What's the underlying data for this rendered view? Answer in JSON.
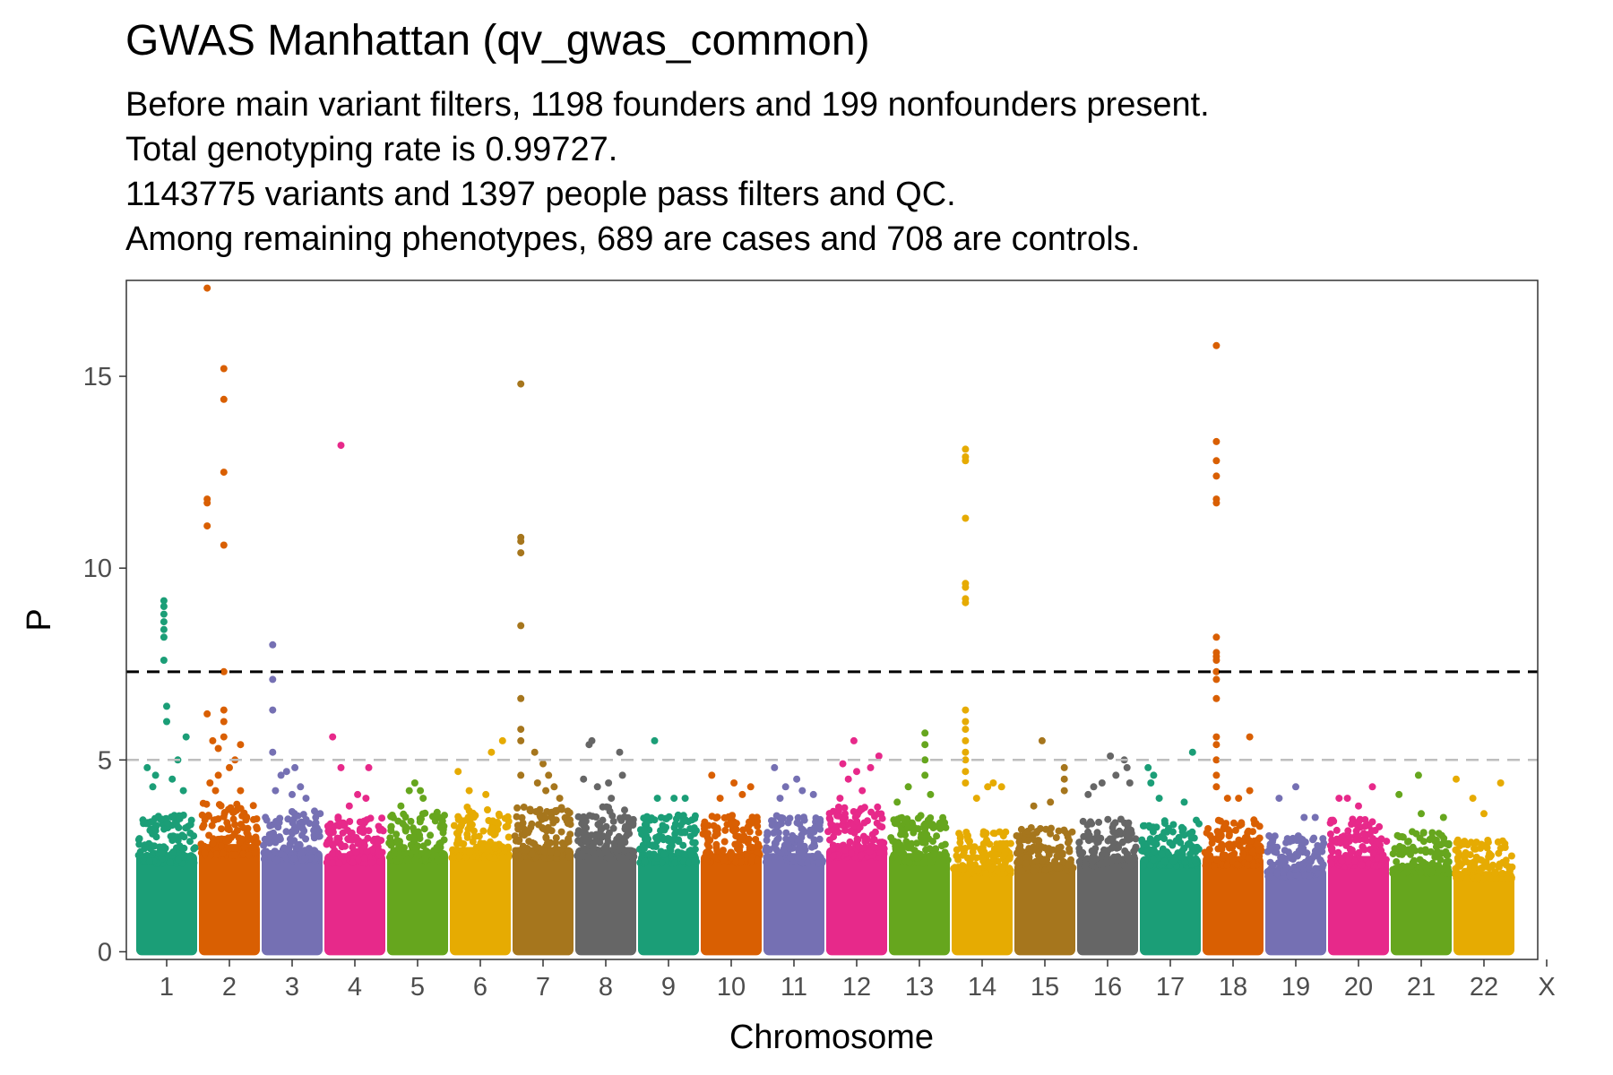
{
  "chart_data": {
    "type": "scatter",
    "title": "GWAS Manhattan (qv_gwas_common)",
    "subtitle_lines": [
      "Before main variant filters, 1198 founders and 199 nonfounders present.",
      "Total genotyping rate is 0.99727.",
      "1143775 variants and 1397 people pass filters and QC.",
      "Among remaining phenotypes, 689 are cases and 708 are controls."
    ],
    "xlabel": "Chromosome",
    "ylabel": "P",
    "ylim": [
      -0.2,
      17.5
    ],
    "yticks": [
      0,
      5,
      10,
      15
    ],
    "grid": false,
    "chromosomes": [
      "1",
      "2",
      "3",
      "4",
      "5",
      "6",
      "7",
      "8",
      "9",
      "10",
      "11",
      "12",
      "13",
      "14",
      "15",
      "16",
      "17",
      "18",
      "19",
      "20",
      "21",
      "22",
      "X"
    ],
    "colors": [
      "#1b9e77",
      "#d95f02",
      "#7570b3",
      "#e7298a",
      "#66a61e",
      "#e6ab02",
      "#a6761d",
      "#666666"
    ],
    "thresholds": [
      {
        "value": 7.3,
        "color": "#000000",
        "style": "dashed"
      },
      {
        "value": 5.0,
        "color": "#bebebe",
        "style": "dashed"
      }
    ],
    "series": [
      {
        "chromosome": "1",
        "base_max": 3.3,
        "hits": [
          [
            0.45,
            9.15
          ],
          [
            0.45,
            9.0
          ],
          [
            0.45,
            8.8
          ],
          [
            0.45,
            8.6
          ],
          [
            0.45,
            8.4
          ],
          [
            0.45,
            8.2
          ],
          [
            0.45,
            7.6
          ],
          [
            0.5,
            6.4
          ],
          [
            0.5,
            6.0
          ],
          [
            0.85,
            5.6
          ],
          [
            0.7,
            5.0
          ],
          [
            0.15,
            4.8
          ],
          [
            0.3,
            4.6
          ],
          [
            0.6,
            4.5
          ],
          [
            0.25,
            4.3
          ],
          [
            0.8,
            4.2
          ]
        ]
      },
      {
        "chromosome": "2",
        "base_max": 3.6,
        "hits": [
          [
            0.1,
            17.3
          ],
          [
            0.4,
            15.2
          ],
          [
            0.4,
            14.4
          ],
          [
            0.4,
            12.5
          ],
          [
            0.1,
            11.8
          ],
          [
            0.1,
            11.7
          ],
          [
            0.1,
            11.1
          ],
          [
            0.4,
            10.6
          ],
          [
            0.4,
            7.3
          ],
          [
            0.4,
            6.3
          ],
          [
            0.1,
            6.2
          ],
          [
            0.4,
            6.0
          ],
          [
            0.4,
            5.6
          ],
          [
            0.2,
            5.5
          ],
          [
            0.3,
            5.3
          ],
          [
            0.7,
            5.4
          ],
          [
            0.6,
            5.0
          ],
          [
            0.5,
            4.8
          ],
          [
            0.3,
            4.6
          ],
          [
            0.15,
            4.4
          ],
          [
            0.7,
            4.2
          ],
          [
            0.25,
            4.2
          ]
        ]
      },
      {
        "chromosome": "3",
        "base_max": 3.4,
        "hits": [
          [
            0.15,
            8.0
          ],
          [
            0.15,
            7.1
          ],
          [
            0.15,
            6.3
          ],
          [
            0.15,
            5.2
          ],
          [
            0.4,
            4.7
          ],
          [
            0.55,
            4.8
          ],
          [
            0.3,
            4.6
          ],
          [
            0.65,
            4.3
          ],
          [
            0.2,
            4.2
          ],
          [
            0.75,
            4.0
          ],
          [
            0.5,
            4.1
          ]
        ]
      },
      {
        "chromosome": "4",
        "base_max": 3.3,
        "hits": [
          [
            0.25,
            13.2
          ],
          [
            0.1,
            5.6
          ],
          [
            0.25,
            4.8
          ],
          [
            0.75,
            4.8
          ],
          [
            0.55,
            4.1
          ],
          [
            0.7,
            4.0
          ],
          [
            0.4,
            3.8
          ]
        ]
      },
      {
        "chromosome": "5",
        "base_max": 3.4,
        "hits": [
          [
            0.45,
            4.4
          ],
          [
            0.55,
            4.2
          ],
          [
            0.35,
            4.2
          ],
          [
            0.6,
            4.0
          ],
          [
            0.2,
            3.8
          ]
        ]
      },
      {
        "chromosome": "6",
        "base_max": 3.5,
        "hits": [
          [
            0.9,
            5.5
          ],
          [
            0.7,
            5.2
          ],
          [
            0.1,
            4.7
          ],
          [
            0.3,
            4.2
          ],
          [
            0.6,
            4.1
          ]
        ]
      },
      {
        "chromosome": "7",
        "base_max": 3.5,
        "hits": [
          [
            0.1,
            14.8
          ],
          [
            0.1,
            10.8
          ],
          [
            0.1,
            10.7
          ],
          [
            0.1,
            10.4
          ],
          [
            0.1,
            8.5
          ],
          [
            0.1,
            6.6
          ],
          [
            0.1,
            5.8
          ],
          [
            0.1,
            5.5
          ],
          [
            0.35,
            5.2
          ],
          [
            0.1,
            4.6
          ],
          [
            0.5,
            4.9
          ],
          [
            0.6,
            4.6
          ],
          [
            0.4,
            4.4
          ],
          [
            0.7,
            4.3
          ],
          [
            0.55,
            4.2
          ],
          [
            0.8,
            4.0
          ]
        ]
      },
      {
        "chromosome": "8",
        "base_max": 3.5,
        "hits": [
          [
            0.2,
            5.4
          ],
          [
            0.25,
            5.5
          ],
          [
            0.75,
            5.2
          ],
          [
            0.1,
            4.5
          ],
          [
            0.55,
            4.4
          ],
          [
            0.8,
            4.6
          ],
          [
            0.35,
            4.3
          ],
          [
            0.6,
            4.0
          ]
        ]
      },
      {
        "chromosome": "9",
        "base_max": 3.3,
        "hits": [
          [
            0.25,
            5.5
          ],
          [
            0.3,
            4.0
          ],
          [
            0.6,
            4.0
          ],
          [
            0.8,
            4.0
          ]
        ]
      },
      {
        "chromosome": "10",
        "base_max": 3.3,
        "hits": [
          [
            0.15,
            4.6
          ],
          [
            0.55,
            4.4
          ],
          [
            0.85,
            4.3
          ],
          [
            0.3,
            4.0
          ],
          [
            0.7,
            4.1
          ]
        ]
      },
      {
        "chromosome": "11",
        "base_max": 3.3,
        "hits": [
          [
            0.15,
            4.8
          ],
          [
            0.35,
            4.3
          ],
          [
            0.55,
            4.5
          ],
          [
            0.65,
            4.2
          ],
          [
            0.85,
            4.1
          ],
          [
            0.25,
            4.0
          ]
        ]
      },
      {
        "chromosome": "12",
        "base_max": 3.5,
        "hits": [
          [
            0.45,
            5.5
          ],
          [
            0.25,
            4.9
          ],
          [
            0.75,
            4.8
          ],
          [
            0.9,
            5.1
          ],
          [
            0.5,
            4.7
          ],
          [
            0.35,
            4.5
          ],
          [
            0.6,
            4.2
          ],
          [
            0.2,
            4.0
          ]
        ]
      },
      {
        "chromosome": "13",
        "base_max": 3.3,
        "hits": [
          [
            0.6,
            5.7
          ],
          [
            0.6,
            5.4
          ],
          [
            0.6,
            5.0
          ],
          [
            0.3,
            4.3
          ],
          [
            0.6,
            4.6
          ],
          [
            0.7,
            4.1
          ],
          [
            0.1,
            3.9
          ]
        ]
      },
      {
        "chromosome": "14",
        "base_max": 2.9,
        "hits": [
          [
            0.2,
            13.1
          ],
          [
            0.2,
            12.9
          ],
          [
            0.2,
            12.8
          ],
          [
            0.2,
            11.3
          ],
          [
            0.2,
            9.6
          ],
          [
            0.2,
            9.5
          ],
          [
            0.2,
            9.2
          ],
          [
            0.2,
            9.1
          ],
          [
            0.2,
            6.3
          ],
          [
            0.2,
            6.0
          ],
          [
            0.2,
            5.8
          ],
          [
            0.2,
            5.5
          ],
          [
            0.2,
            5.2
          ],
          [
            0.2,
            5.0
          ],
          [
            0.2,
            4.7
          ],
          [
            0.2,
            4.4
          ],
          [
            0.7,
            4.4
          ],
          [
            0.6,
            4.3
          ],
          [
            0.85,
            4.3
          ],
          [
            0.4,
            4.0
          ]
        ]
      },
      {
        "chromosome": "15",
        "base_max": 3.0,
        "hits": [
          [
            0.45,
            5.5
          ],
          [
            0.85,
            4.8
          ],
          [
            0.85,
            4.5
          ],
          [
            0.85,
            4.2
          ],
          [
            0.3,
            3.8
          ],
          [
            0.6,
            3.9
          ]
        ]
      },
      {
        "chromosome": "16",
        "base_max": 3.2,
        "hits": [
          [
            0.55,
            5.1
          ],
          [
            0.8,
            5.0
          ],
          [
            0.85,
            4.8
          ],
          [
            0.4,
            4.4
          ],
          [
            0.25,
            4.3
          ],
          [
            0.65,
            4.6
          ],
          [
            0.9,
            4.4
          ],
          [
            0.15,
            4.1
          ]
        ]
      },
      {
        "chromosome": "17",
        "base_max": 3.2,
        "hits": [
          [
            0.9,
            5.2
          ],
          [
            0.1,
            4.8
          ],
          [
            0.2,
            4.6
          ],
          [
            0.15,
            4.4
          ],
          [
            0.3,
            4.0
          ],
          [
            0.75,
            3.9
          ]
        ]
      },
      {
        "chromosome": "18",
        "base_max": 3.2,
        "hits": [
          [
            0.2,
            15.8
          ],
          [
            0.2,
            13.3
          ],
          [
            0.2,
            12.8
          ],
          [
            0.2,
            12.4
          ],
          [
            0.2,
            11.8
          ],
          [
            0.2,
            11.7
          ],
          [
            0.2,
            8.2
          ],
          [
            0.2,
            7.8
          ],
          [
            0.2,
            7.7
          ],
          [
            0.2,
            7.6
          ],
          [
            0.2,
            7.3
          ],
          [
            0.2,
            7.1
          ],
          [
            0.2,
            6.6
          ],
          [
            0.2,
            5.6
          ],
          [
            0.2,
            5.4
          ],
          [
            0.2,
            5.0
          ],
          [
            0.8,
            5.6
          ],
          [
            0.2,
            4.6
          ],
          [
            0.2,
            4.3
          ],
          [
            0.6,
            4.0
          ],
          [
            0.8,
            4.2
          ],
          [
            0.4,
            4.0
          ]
        ]
      },
      {
        "chromosome": "19",
        "base_max": 2.8,
        "hits": [
          [
            0.5,
            4.3
          ],
          [
            0.2,
            4.0
          ],
          [
            0.65,
            3.5
          ],
          [
            0.85,
            3.5
          ]
        ]
      },
      {
        "chromosome": "20",
        "base_max": 3.2,
        "hits": [
          [
            0.75,
            4.3
          ],
          [
            0.15,
            4.0
          ],
          [
            0.3,
            4.0
          ],
          [
            0.5,
            3.8
          ]
        ]
      },
      {
        "chromosome": "21",
        "base_max": 2.9,
        "hits": [
          [
            0.45,
            4.6
          ],
          [
            0.1,
            4.1
          ],
          [
            0.9,
            3.5
          ],
          [
            0.5,
            3.6
          ]
        ]
      },
      {
        "chromosome": "22",
        "base_max": 2.7,
        "hits": [
          [
            0.8,
            4.4
          ],
          [
            0.0,
            4.5
          ],
          [
            0.3,
            4.0
          ],
          [
            0.5,
            3.6
          ]
        ]
      }
    ]
  }
}
